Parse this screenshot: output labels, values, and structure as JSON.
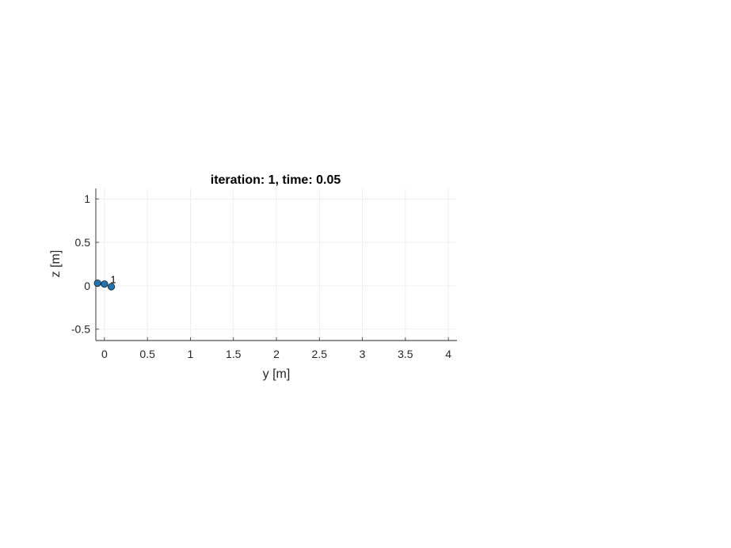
{
  "chart_data": {
    "type": "scatter",
    "title": "iteration: 1, time: 0.05",
    "xlabel": "y [m]",
    "ylabel": "z [m]",
    "xlim": [
      -0.1,
      4.1
    ],
    "ylim": [
      -0.63,
      1.12
    ],
    "xticks": [
      0,
      0.5,
      1,
      1.5,
      2,
      2.5,
      3,
      3.5,
      4
    ],
    "xtick_labels": [
      "0",
      "0.5",
      "1",
      "1.5",
      "2",
      "2.5",
      "3",
      "3.5",
      "4"
    ],
    "yticks": [
      -0.5,
      0,
      0.5,
      1
    ],
    "ytick_labels": [
      "-0.5",
      "0",
      "0.5",
      "1"
    ],
    "grid": true,
    "series": [
      {
        "x": [
          -0.08,
          0.0,
          0.08
        ],
        "y": [
          0.03,
          0.02,
          -0.01
        ],
        "color": "#1f77b4"
      }
    ],
    "annotations": [
      {
        "text": "1",
        "x": 0.06,
        "y": 0.04
      }
    ]
  }
}
